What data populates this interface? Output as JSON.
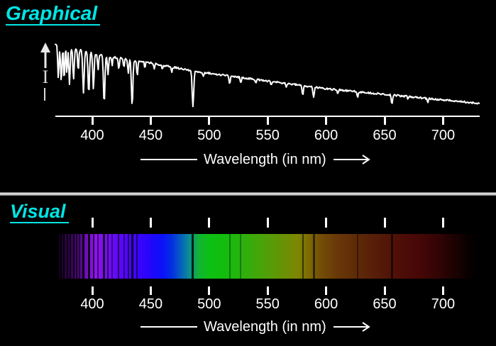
{
  "graphical": {
    "title": "Graphical",
    "y_axis_label": "I",
    "x_axis_label": "Wavelength (in nm)"
  },
  "visual": {
    "title": "Visual",
    "x_axis_label": "Wavelength (in nm)"
  },
  "colors": {
    "title_cyan": "#00e5e5",
    "curve": "#ffffff",
    "background": "#000000",
    "axis_text": "#ffffff"
  },
  "chart_data": [
    {
      "type": "line",
      "title": "Graphical",
      "xlabel": "Wavelength (in nm)",
      "ylabel": "I",
      "legend": [],
      "grid": false,
      "x_ticks": [
        400,
        450,
        500,
        550,
        600,
        650,
        700
      ],
      "x_range": [
        368,
        731
      ],
      "y_range_relative": [
        0,
        1
      ],
      "description": "Stellar absorption spectrum: intensity declines from blue to red with narrow absorption dips",
      "continuum": [
        [
          369,
          1.0
        ],
        [
          382,
          0.94
        ],
        [
          412,
          0.83
        ],
        [
          442,
          0.76
        ],
        [
          487,
          0.62
        ],
        [
          533,
          0.52
        ],
        [
          600,
          0.375
        ],
        [
          661,
          0.28
        ],
        [
          731,
          0.17
        ]
      ],
      "absorption_lines": [
        [
          371,
          0.46,
          0.8
        ],
        [
          373.5,
          0.52,
          0.8
        ],
        [
          376,
          0.48,
          0.7
        ],
        [
          378.3,
          0.4,
          0.6
        ],
        [
          380.5,
          0.5,
          0.8
        ],
        [
          384,
          0.42,
          0.8
        ],
        [
          388,
          0.3,
          0.7
        ],
        [
          392.5,
          0.58,
          0.9
        ],
        [
          397,
          0.57,
          0.9
        ],
        [
          401,
          0.5,
          0.8
        ],
        [
          405,
          0.22,
          0.7
        ],
        [
          410.2,
          0.66,
          0.9
        ],
        [
          413.5,
          0.25,
          0.7
        ],
        [
          417,
          0.12,
          0.6
        ],
        [
          422.7,
          0.16,
          0.7
        ],
        [
          427,
          0.13,
          0.6
        ],
        [
          430.8,
          0.2,
          0.7
        ],
        [
          434.1,
          0.64,
          0.9
        ],
        [
          438.5,
          0.22,
          0.7
        ],
        [
          445,
          0.1,
          0.6
        ],
        [
          453,
          0.08,
          0.6
        ],
        [
          460,
          0.06,
          0.6
        ],
        [
          468,
          0.08,
          0.6
        ],
        [
          486.1,
          0.5,
          0.9
        ],
        [
          495,
          0.06,
          0.6
        ],
        [
          517.5,
          0.1,
          0.8
        ],
        [
          527,
          0.08,
          0.7
        ],
        [
          540,
          0.06,
          0.6
        ],
        [
          553,
          0.06,
          0.6
        ],
        [
          566,
          0.05,
          0.6
        ],
        [
          580,
          0.13,
          0.8
        ],
        [
          589.3,
          0.14,
          0.8
        ],
        [
          610,
          0.05,
          0.6
        ],
        [
          627,
          0.08,
          0.7
        ],
        [
          656.3,
          0.13,
          0.8
        ],
        [
          670,
          0.04,
          0.6
        ],
        [
          687,
          0.05,
          0.7
        ]
      ]
    },
    {
      "type": "heatmap",
      "title": "Visual",
      "xlabel": "Wavelength (in nm)",
      "x_ticks": [
        400,
        450,
        500,
        550,
        600,
        650,
        700
      ],
      "x_range": [
        371,
        731
      ],
      "description": "Visible-light spectrum band with dark Fraunhofer absorption lines, fading to black at the red end",
      "gradient_stops": [
        [
          0,
          "#12001c"
        ],
        [
          1.3,
          "#26033c"
        ],
        [
          2.6,
          "#33054e"
        ],
        [
          4.0,
          "#44076b"
        ],
        [
          5.7,
          "#5c0a96"
        ],
        [
          7.1,
          "#7c10d0"
        ],
        [
          8.8,
          "#8d14ea"
        ],
        [
          10.7,
          "#7d0ff0"
        ],
        [
          13.0,
          "#660af4"
        ],
        [
          15.7,
          "#5406f8"
        ],
        [
          19.1,
          "#3a04fa"
        ],
        [
          21.9,
          "#2206fc"
        ],
        [
          24.6,
          "#0b12f8"
        ],
        [
          26.9,
          "#0430e0"
        ],
        [
          29.1,
          "#0762bc"
        ],
        [
          31.0,
          "#0b8f94"
        ],
        [
          32.2,
          "#0fa060"
        ],
        [
          33.0,
          "#12b138"
        ],
        [
          35.8,
          "#0cc012"
        ],
        [
          40.0,
          "#15bb0e"
        ],
        [
          44.1,
          "#2eb00c"
        ],
        [
          48.3,
          "#4aa309"
        ],
        [
          52.5,
          "#639406"
        ],
        [
          56.7,
          "#7d8701"
        ],
        [
          59.4,
          "#7d6a04"
        ],
        [
          62.2,
          "#744d07"
        ],
        [
          66.4,
          "#683708"
        ],
        [
          72.0,
          "#5c2708"
        ],
        [
          77.5,
          "#531708"
        ],
        [
          81.7,
          "#4e0c08"
        ],
        [
          85.9,
          "#460707"
        ],
        [
          90.0,
          "#330404"
        ],
        [
          94.2,
          "#1b0202"
        ],
        [
          97.6,
          "#070000"
        ],
        [
          100,
          "#000000"
        ]
      ],
      "absorption_lines": [
        [
          371,
          0.8,
          2
        ],
        [
          373.5,
          0.85,
          2
        ],
        [
          376,
          0.8,
          2
        ],
        [
          378.5,
          0.7,
          2
        ],
        [
          381,
          0.75,
          2
        ],
        [
          384,
          0.7,
          2
        ],
        [
          386.5,
          0.6,
          2
        ],
        [
          389,
          0.55,
          2
        ],
        [
          392.5,
          0.85,
          3
        ],
        [
          397,
          0.85,
          3
        ],
        [
          401,
          0.7,
          2
        ],
        [
          405,
          0.5,
          2
        ],
        [
          410.2,
          0.8,
          3
        ],
        [
          413.5,
          0.55,
          2
        ],
        [
          417,
          0.4,
          2
        ],
        [
          422.7,
          0.6,
          2
        ],
        [
          427,
          0.45,
          2
        ],
        [
          430.8,
          0.55,
          2
        ],
        [
          434.1,
          0.8,
          3
        ],
        [
          438.5,
          0.5,
          2
        ],
        [
          486.1,
          0.8,
          3
        ],
        [
          517.5,
          0.35,
          2
        ],
        [
          527,
          0.3,
          2
        ],
        [
          580,
          0.55,
          2
        ],
        [
          589.3,
          0.6,
          3
        ],
        [
          627,
          0.4,
          2
        ],
        [
          656.3,
          0.6,
          3
        ]
      ]
    }
  ]
}
